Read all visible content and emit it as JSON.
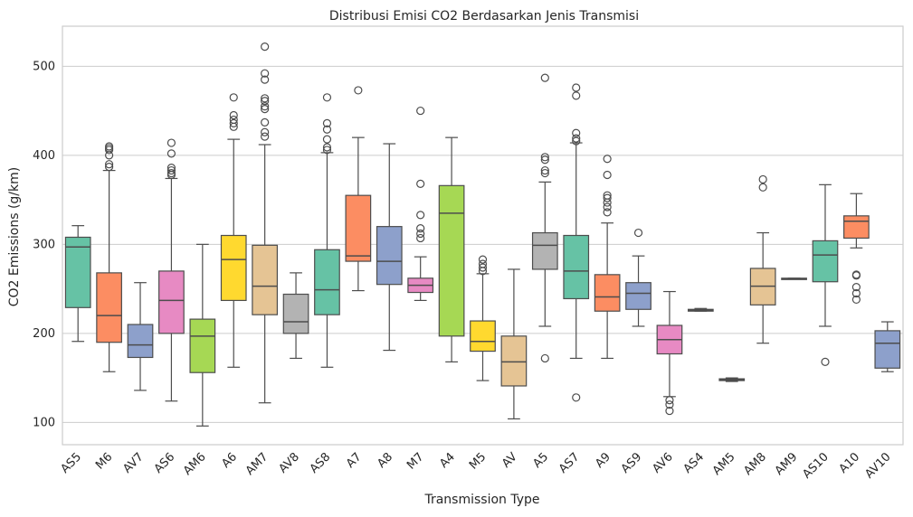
{
  "chart_data": {
    "type": "box",
    "title": "Distribusi Emisi CO2 Berdasarkan Jenis Transmisi",
    "xlabel": "Transmission Type",
    "ylabel": "CO2 Emissions (g/km)",
    "ylim": [
      75,
      545
    ],
    "yticks": [
      100,
      200,
      300,
      400,
      500
    ],
    "grid": "horizontal",
    "palette": [
      "#66c2a5",
      "#fc8d62",
      "#8da0cb",
      "#e78ac3",
      "#a6d854",
      "#ffd92f",
      "#e5c494",
      "#b3b3b3"
    ],
    "categories": [
      {
        "name": "AS5",
        "min": 191,
        "q1": 229,
        "median": 297,
        "q3": 308,
        "max": 321,
        "fliers": [],
        "color": "#66c2a5"
      },
      {
        "name": "M6",
        "min": 157,
        "q1": 190,
        "median": 220,
        "q3": 268,
        "max": 383,
        "fliers": [
          387,
          390,
          400,
          406,
          408,
          410
        ],
        "color": "#fc8d62"
      },
      {
        "name": "AV7",
        "min": 136,
        "q1": 173,
        "median": 187,
        "q3": 210,
        "max": 257,
        "fliers": [],
        "color": "#8da0cb"
      },
      {
        "name": "AS6",
        "min": 124,
        "q1": 200,
        "median": 237,
        "q3": 270,
        "max": 374,
        "fliers": [
          378,
          380,
          383,
          386,
          402,
          414
        ],
        "color": "#e78ac3"
      },
      {
        "name": "AM6",
        "min": 96,
        "q1": 156,
        "median": 197,
        "q3": 216,
        "max": 300,
        "fliers": [],
        "color": "#a6d854"
      },
      {
        "name": "A6",
        "min": 162,
        "q1": 237,
        "median": 283,
        "q3": 310,
        "max": 418,
        "fliers": [
          432,
          436,
          440,
          445,
          465
        ],
        "color": "#ffd92f"
      },
      {
        "name": "AM7",
        "min": 122,
        "q1": 221,
        "median": 253,
        "q3": 299,
        "max": 412,
        "fliers": [
          421,
          426,
          437,
          452,
          455,
          461,
          464,
          485,
          492,
          522
        ],
        "color": "#e5c494"
      },
      {
        "name": "AV8",
        "min": 172,
        "q1": 200,
        "median": 213,
        "q3": 244,
        "max": 268,
        "fliers": [],
        "color": "#b3b3b3"
      },
      {
        "name": "AS8",
        "min": 162,
        "q1": 221,
        "median": 249,
        "q3": 294,
        "max": 403,
        "fliers": [
          406,
          409,
          418,
          429,
          436,
          465
        ],
        "color": "#66c2a5"
      },
      {
        "name": "A7",
        "min": 248,
        "q1": 281,
        "median": 287,
        "q3": 355,
        "max": 420,
        "fliers": [
          473
        ],
        "color": "#fc8d62"
      },
      {
        "name": "A8",
        "min": 181,
        "q1": 255,
        "median": 281,
        "q3": 320,
        "max": 413,
        "fliers": [],
        "color": "#8da0cb"
      },
      {
        "name": "M7",
        "min": 237,
        "q1": 246,
        "median": 254,
        "q3": 262,
        "max": 286,
        "fliers": [
          307,
          312,
          318,
          333,
          368,
          450
        ],
        "color": "#e78ac3"
      },
      {
        "name": "A4",
        "min": 168,
        "q1": 197,
        "median": 335,
        "q3": 366,
        "max": 420,
        "fliers": [],
        "color": "#a6d854"
      },
      {
        "name": "M5",
        "min": 147,
        "q1": 180,
        "median": 191,
        "q3": 214,
        "max": 267,
        "fliers": [
          270,
          274,
          278,
          283
        ],
        "color": "#ffd92f"
      },
      {
        "name": "AV",
        "min": 104,
        "q1": 141,
        "median": 168,
        "q3": 197,
        "max": 272,
        "fliers": [],
        "color": "#e5c494"
      },
      {
        "name": "A5",
        "min": 208,
        "q1": 272,
        "median": 299,
        "q3": 313,
        "max": 370,
        "fliers": [
          172,
          380,
          383,
          395,
          398,
          487
        ],
        "color": "#b3b3b3"
      },
      {
        "name": "AS7",
        "min": 172,
        "q1": 239,
        "median": 270,
        "q3": 310,
        "max": 414,
        "fliers": [
          128,
          416,
          419,
          425,
          467,
          476
        ],
        "color": "#66c2a5"
      },
      {
        "name": "A9",
        "min": 172,
        "q1": 225,
        "median": 241,
        "q3": 266,
        "max": 324,
        "fliers": [
          336,
          342,
          347,
          352,
          355,
          378,
          396
        ],
        "color": "#fc8d62"
      },
      {
        "name": "AS9",
        "min": 208,
        "q1": 227,
        "median": 245,
        "q3": 257,
        "max": 287,
        "fliers": [
          313
        ],
        "color": "#8da0cb"
      },
      {
        "name": "AV6",
        "min": 129,
        "q1": 177,
        "median": 193,
        "q3": 209,
        "max": 247,
        "fliers": [
          113,
          120,
          125
        ],
        "color": "#e78ac3"
      },
      {
        "name": "AS4",
        "min": 225,
        "q1": 225,
        "median": 226,
        "q3": 227,
        "max": 228,
        "fliers": [],
        "color": "#a6d854"
      },
      {
        "name": "AM5",
        "min": 146,
        "q1": 147,
        "median": 148,
        "q3": 149,
        "max": 150,
        "fliers": [],
        "color": "#ffd92f"
      },
      {
        "name": "AM8",
        "min": 189,
        "q1": 232,
        "median": 253,
        "q3": 273,
        "max": 313,
        "fliers": [
          364,
          373
        ],
        "color": "#e5c494"
      },
      {
        "name": "AM9",
        "min": 261,
        "q1": 261,
        "median": 261,
        "q3": 262,
        "max": 262,
        "fliers": [],
        "color": "#b3b3b3"
      },
      {
        "name": "AS10",
        "min": 208,
        "q1": 258,
        "median": 288,
        "q3": 304,
        "max": 367,
        "fliers": [
          168
        ],
        "color": "#66c2a5"
      },
      {
        "name": "A10",
        "min": 296,
        "q1": 307,
        "median": 326,
        "q3": 332,
        "max": 357,
        "fliers": [
          238,
          245,
          252,
          265,
          266
        ],
        "color": "#fc8d62"
      },
      {
        "name": "AV10",
        "min": 157,
        "q1": 161,
        "median": 189,
        "q3": 203,
        "max": 213,
        "fliers": [],
        "color": "#8da0cb"
      }
    ]
  }
}
